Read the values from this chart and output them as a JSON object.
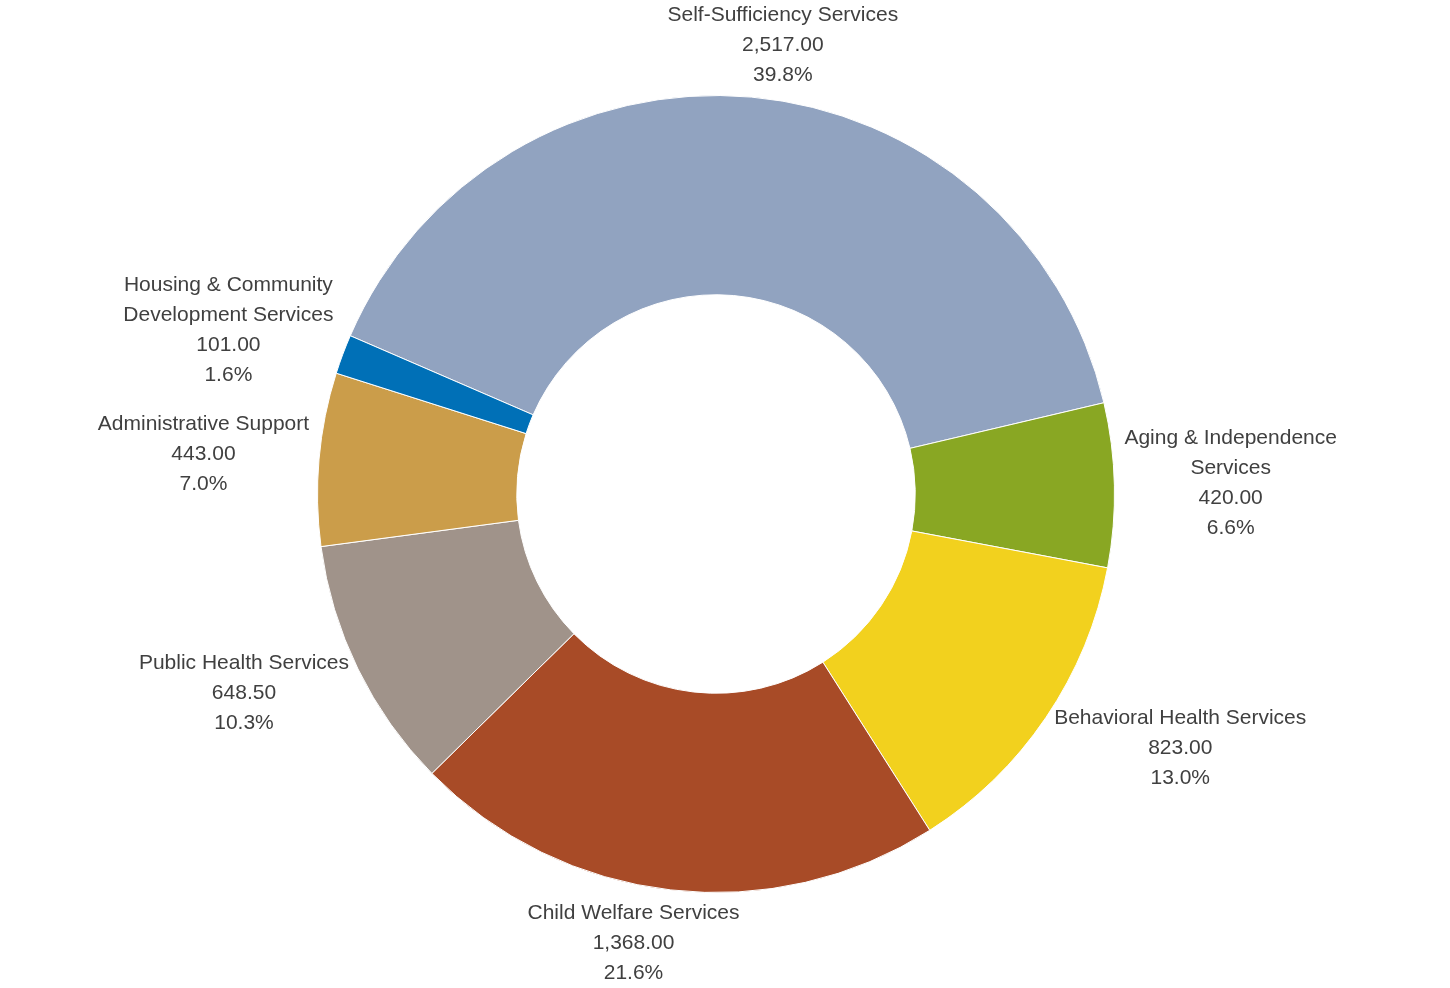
{
  "chart_data": {
    "type": "donut",
    "categories": [
      "Self-Sufficiency Services",
      "Aging & Independence Services",
      "Behavioral Health Services",
      "Child Welfare Services",
      "Public Health Services",
      "Administrative Support",
      "Housing & Community Development Services"
    ],
    "values": [
      2517,
      420,
      823,
      1368,
      648.5,
      443,
      101
    ],
    "colors": [
      "#91a3c0",
      "#89a723",
      "#f2d11e",
      "#a84b27",
      "#a0938a",
      "#cb9d4a",
      "#0070b7"
    ],
    "value_labels": [
      "2,517.00\n39.8%",
      "420.00\n6.6%",
      "823.00\n13.0%",
      "1,368.00\n21.6%",
      "648.50\n10.3%",
      "443.00\n7.0%",
      "101.00\n1.6%"
    ],
    "legend": false
  }
}
